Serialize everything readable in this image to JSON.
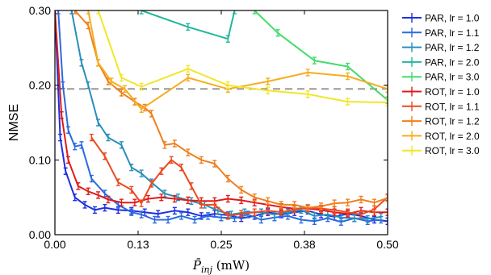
{
  "chart_data": {
    "type": "line",
    "xlabel": "P̄inj (mW)",
    "xlabel_parts": {
      "base": "P̄",
      "sub": "inj",
      "unit": " (mW)"
    },
    "ylabel": "NMSE",
    "xlim": [
      0,
      0.5
    ],
    "ylim": [
      0,
      0.3
    ],
    "xticks": [
      0,
      0.125,
      0.25,
      0.375,
      0.5
    ],
    "xtick_labels": [
      "0.00",
      "0.13",
      "0.25",
      "0.38",
      "0.50"
    ],
    "yticks": [
      0,
      0.1,
      0.2,
      0.3
    ],
    "ytick_labels": [
      "0.00",
      "0.10",
      "0.20",
      "0.30"
    ],
    "grid": false,
    "legend_position": "outside-right",
    "reference_line": {
      "y": 0.195,
      "style": "dashed",
      "color": "#999999"
    },
    "series": [
      {
        "name": "PAR, lr = 1.0",
        "color": "#1f2fe0",
        "x": [
          0,
          0.008,
          0.016,
          0.03,
          0.045,
          0.06,
          0.075,
          0.095,
          0.115,
          0.135,
          0.155,
          0.18,
          0.2,
          0.22,
          0.24,
          0.26,
          0.28,
          0.3,
          0.32,
          0.34,
          0.36,
          0.38,
          0.4,
          0.42,
          0.44,
          0.46,
          0.48,
          0.5
        ],
        "y": [
          0.3,
          0.13,
          0.085,
          0.05,
          0.04,
          0.033,
          0.036,
          0.033,
          0.032,
          0.03,
          0.028,
          0.032,
          0.03,
          0.025,
          0.028,
          0.026,
          0.022,
          0.025,
          0.03,
          0.027,
          0.03,
          0.032,
          0.027,
          0.024,
          0.028,
          0.025,
          0.02,
          0.018
        ]
      },
      {
        "name": "PAR, lr = 1.1",
        "color": "#2a6ae0",
        "x": [
          0.005,
          0.012,
          0.02,
          0.03,
          0.04,
          0.055,
          0.075,
          0.095,
          0.115,
          0.13,
          0.15,
          0.17,
          0.19,
          0.21,
          0.23,
          0.25,
          0.27,
          0.29,
          0.31,
          0.33,
          0.35,
          0.37,
          0.39,
          0.41,
          0.43,
          0.45,
          0.47,
          0.49
        ],
        "y": [
          0.3,
          0.2,
          0.14,
          0.118,
          0.12,
          0.075,
          0.055,
          0.04,
          0.03,
          0.027,
          0.02,
          0.02,
          0.025,
          0.02,
          0.025,
          0.023,
          0.022,
          0.027,
          0.02,
          0.023,
          0.025,
          0.02,
          0.018,
          0.022,
          0.017,
          0.022,
          0.018,
          0.02
        ]
      },
      {
        "name": "PAR, lr = 1.2",
        "color": "#2a8fb8",
        "x": [
          0.025,
          0.04,
          0.05,
          0.065,
          0.08,
          0.1,
          0.115,
          0.13,
          0.145,
          0.165,
          0.185,
          0.205,
          0.225,
          0.245,
          0.265,
          0.285,
          0.31,
          0.33,
          0.35,
          0.37,
          0.39,
          0.41,
          0.43,
          0.45,
          0.47,
          0.49
        ],
        "y": [
          0.3,
          0.23,
          0.2,
          0.15,
          0.13,
          0.12,
          0.09,
          0.082,
          0.07,
          0.055,
          0.05,
          0.045,
          0.04,
          0.032,
          0.027,
          0.03,
          0.03,
          0.027,
          0.03,
          0.033,
          0.025,
          0.027,
          0.023,
          0.022,
          0.021,
          0.024
        ]
      },
      {
        "name": "PAR, lr = 2.0",
        "color": "#22b79c",
        "x": [
          0.13,
          0.2,
          0.26,
          0.27
        ],
        "y": [
          0.3,
          0.278,
          0.262,
          0.3
        ]
      },
      {
        "name": "PAR, lr = 3.0",
        "color": "#44db6c",
        "x": [
          0.3,
          0.335,
          0.39,
          0.44,
          0.5
        ],
        "y": [
          0.3,
          0.27,
          0.233,
          0.225,
          0.18
        ]
      },
      {
        "name": "ROT, lr = 1.0",
        "color": "#e01a1a",
        "x": [
          0,
          0.01,
          0.02,
          0.035,
          0.05,
          0.065,
          0.08,
          0.1,
          0.12,
          0.14,
          0.16,
          0.18,
          0.2,
          0.22,
          0.24,
          0.26,
          0.28,
          0.3,
          0.32,
          0.34,
          0.36,
          0.38,
          0.4,
          0.42,
          0.44,
          0.46,
          0.48,
          0.5
        ],
        "y": [
          0.3,
          0.16,
          0.1,
          0.065,
          0.058,
          0.053,
          0.047,
          0.043,
          0.043,
          0.048,
          0.05,
          0.048,
          0.046,
          0.045,
          0.045,
          0.048,
          0.046,
          0.043,
          0.04,
          0.037,
          0.035,
          0.035,
          0.033,
          0.03,
          0.028,
          0.032,
          0.03,
          0.03
        ]
      },
      {
        "name": "ROT, lr = 1.1",
        "color": "#ec4a20",
        "x": [
          0.055,
          0.075,
          0.095,
          0.115,
          0.13,
          0.145,
          0.16,
          0.175,
          0.19,
          0.205,
          0.22,
          0.24,
          0.26,
          0.28,
          0.3,
          0.32,
          0.34,
          0.36,
          0.38,
          0.4,
          0.42,
          0.44,
          0.46,
          0.48,
          0.5
        ],
        "y": [
          0.13,
          0.105,
          0.07,
          0.06,
          0.042,
          0.068,
          0.085,
          0.1,
          0.09,
          0.065,
          0.04,
          0.04,
          0.025,
          0.028,
          0.03,
          0.032,
          0.03,
          0.034,
          0.036,
          0.035,
          0.033,
          0.03,
          0.027,
          0.034,
          0.05
        ]
      },
      {
        "name": "ROT, lr = 1.2",
        "color": "#f07f1c",
        "x": [
          0.03,
          0.05,
          0.065,
          0.08,
          0.1,
          0.12,
          0.135,
          0.145,
          0.165,
          0.18,
          0.2,
          0.22,
          0.24,
          0.26,
          0.28,
          0.3,
          0.32,
          0.34,
          0.36,
          0.38,
          0.4,
          0.42,
          0.44,
          0.46,
          0.48,
          0.5
        ],
        "y": [
          0.3,
          0.28,
          0.23,
          0.205,
          0.19,
          0.178,
          0.17,
          0.162,
          0.12,
          0.122,
          0.11,
          0.1,
          0.095,
          0.075,
          0.06,
          0.05,
          0.045,
          0.04,
          0.04,
          0.036,
          0.038,
          0.042,
          0.043,
          0.047,
          0.043,
          0.049
        ]
      },
      {
        "name": "ROT, lr = 2.0",
        "color": "#f5ad1e",
        "x": [
          0.05,
          0.065,
          0.085,
          0.105,
          0.13,
          0.2,
          0.26,
          0.32,
          0.38,
          0.44,
          0.5
        ],
        "y": [
          0.3,
          0.23,
          0.205,
          0.195,
          0.168,
          0.21,
          0.195,
          0.205,
          0.217,
          0.212,
          0.195
        ]
      },
      {
        "name": "ROT, lr = 3.0",
        "color": "#f2e626",
        "x": [
          0.065,
          0.1,
          0.13,
          0.2,
          0.26,
          0.32,
          0.38,
          0.44,
          0.5
        ],
        "y": [
          0.3,
          0.21,
          0.198,
          0.222,
          0.2,
          0.193,
          0.188,
          0.178,
          0.177
        ]
      }
    ]
  }
}
